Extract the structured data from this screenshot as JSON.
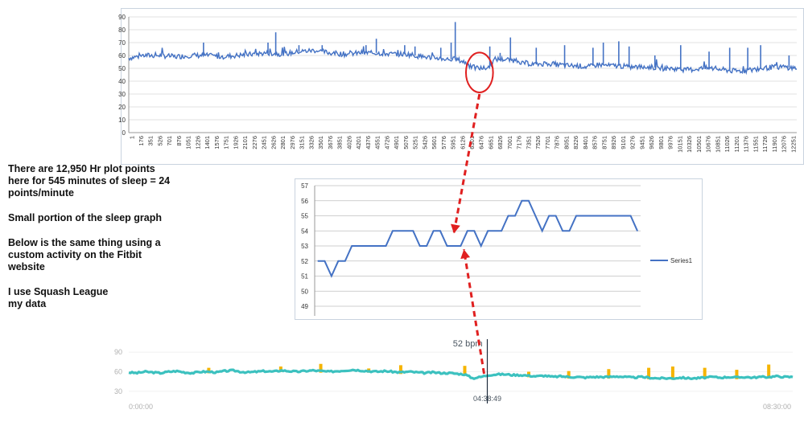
{
  "notes": [
    "There are 12,950 Hr plot points here for 545 minutes of sleep = 24 points/minute",
    "Small portion of the sleep graph",
    "Below is the same thing using a custom activity on the Fitbit website",
    "I use Squash League\nmy data"
  ],
  "colors": {
    "excel_line": "#4472c4",
    "fitbit_teal": "#3cc1bf",
    "fitbit_peak": "#f5b400",
    "annotation_red": "#e02020",
    "grid": "#d9d9d9",
    "cursor": "#1f2d3d"
  },
  "chart_data": [
    {
      "id": "full-night",
      "type": "line",
      "ylim": [
        0,
        90
      ],
      "yticks": [
        0,
        10,
        20,
        30,
        40,
        50,
        60,
        70,
        80,
        90
      ],
      "xticks": [
        "1",
        "176",
        "351",
        "526",
        "701",
        "876",
        "1051",
        "1226",
        "1401",
        "1576",
        "1751",
        "1926",
        "2101",
        "2276",
        "2451",
        "2626",
        "2801",
        "2976",
        "3151",
        "3326",
        "3501",
        "3676",
        "3851",
        "4026",
        "4201",
        "4376",
        "4551",
        "4726",
        "4901",
        "5076",
        "5251",
        "5426",
        "5601",
        "5776",
        "5951",
        "6126",
        "6301",
        "6476",
        "6651",
        "6826",
        "7001",
        "7176",
        "7351",
        "7526",
        "7701",
        "7876",
        "8051",
        "8226",
        "8401",
        "8576",
        "8751",
        "8926",
        "9101",
        "9276",
        "9451",
        "9626",
        "9801",
        "9976",
        "10151",
        "10326",
        "10501",
        "10676",
        "10851",
        "11026",
        "11201",
        "11376",
        "11551",
        "11726",
        "11901",
        "12076",
        "12251"
      ],
      "x_range": [
        1,
        12950
      ],
      "series": [
        {
          "x": [
            1,
            300,
            600,
            900,
            1200,
            1500,
            1800,
            2100,
            2400,
            2700,
            3000,
            3300,
            3600,
            3900,
            4200,
            4500,
            4800,
            5100,
            5400,
            5700,
            6000,
            6200,
            6350,
            6500,
            6650,
            6800,
            6950,
            7100,
            7300,
            7500,
            7700,
            7900,
            8100,
            8300,
            8500,
            8700,
            8900,
            9100,
            9300,
            9500,
            9700,
            9900,
            10100,
            10300,
            10500,
            10700,
            10900,
            11100,
            11300,
            11500,
            11700,
            11900,
            12100,
            12300,
            12500,
            12700,
            12950
          ],
          "values": [
            58,
            60,
            60,
            59,
            60,
            60,
            59,
            60,
            61,
            62,
            61,
            63,
            64,
            62,
            61,
            62,
            62,
            61,
            61,
            59,
            58,
            57,
            57,
            55,
            51,
            50,
            50,
            57,
            57,
            56,
            54,
            53,
            54,
            53,
            52,
            52,
            51,
            53,
            52,
            52,
            51,
            51,
            51,
            50,
            50,
            49,
            49,
            50,
            50,
            49,
            48,
            48,
            49,
            50,
            51,
            51,
            50
          ],
          "spikes": [
            {
              "x": 1450,
              "y": 70
            },
            {
              "x": 2700,
              "y": 70
            },
            {
              "x": 2850,
              "y": 78
            },
            {
              "x": 3300,
              "y": 68
            },
            {
              "x": 3750,
              "y": 68
            },
            {
              "x": 4600,
              "y": 68
            },
            {
              "x": 4800,
              "y": 73
            },
            {
              "x": 5350,
              "y": 68
            },
            {
              "x": 5550,
              "y": 67
            },
            {
              "x": 6050,
              "y": 66
            },
            {
              "x": 6250,
              "y": 70
            },
            {
              "x": 6330,
              "y": 86
            },
            {
              "x": 7000,
              "y": 67
            },
            {
              "x": 7200,
              "y": 62
            },
            {
              "x": 7400,
              "y": 74
            },
            {
              "x": 7900,
              "y": 66
            },
            {
              "x": 8450,
              "y": 68
            },
            {
              "x": 9000,
              "y": 66
            },
            {
              "x": 9200,
              "y": 70
            },
            {
              "x": 9500,
              "y": 71
            },
            {
              "x": 9700,
              "y": 67
            },
            {
              "x": 10200,
              "y": 60
            },
            {
              "x": 10700,
              "y": 68
            },
            {
              "x": 11250,
              "y": 63
            },
            {
              "x": 11650,
              "y": 66
            },
            {
              "x": 12000,
              "y": 66
            },
            {
              "x": 12250,
              "y": 68
            },
            {
              "x": 12800,
              "y": 60
            }
          ]
        }
      ],
      "highlight": {
        "x_start": 6600,
        "x_end": 7000,
        "y_low": 45,
        "y_high": 56
      }
    },
    {
      "id": "sleep-portion",
      "type": "line",
      "ylim": [
        49,
        57
      ],
      "yticks": [
        49,
        50,
        51,
        52,
        53,
        54,
        55,
        56,
        57
      ],
      "series": [
        {
          "name": "Series1",
          "values": [
            52,
            52,
            51,
            52,
            52,
            53,
            53,
            53,
            53,
            53,
            53,
            54,
            54,
            54,
            54,
            53,
            53,
            54,
            54,
            53,
            53,
            53,
            54,
            54,
            53,
            54,
            54,
            54,
            55,
            55,
            56,
            56,
            55,
            54,
            55,
            55,
            54,
            54,
            55,
            55,
            55,
            55,
            55,
            55,
            55,
            55,
            55,
            54
          ]
        }
      ]
    },
    {
      "id": "fitbit",
      "type": "area",
      "yticks": [
        30,
        60,
        90
      ],
      "ylim": [
        20,
        100
      ],
      "x_labels": [
        "0:00:00",
        "08:30:00"
      ],
      "cursor": {
        "value": "52 bpm",
        "time": "04:38:49",
        "position_fraction": 0.54
      },
      "series": [
        {
          "values": [
            59,
            58,
            60,
            59,
            58,
            60,
            61,
            59,
            58,
            60,
            60,
            59,
            61,
            62,
            60,
            59,
            60,
            61,
            60,
            62,
            61,
            60,
            61,
            62,
            61,
            60,
            61,
            62,
            63,
            62,
            61,
            60,
            61,
            60,
            59,
            60,
            59,
            58,
            59,
            58,
            58,
            57,
            56,
            50,
            52,
            55,
            56,
            56,
            55,
            55,
            54,
            53,
            54,
            52,
            53,
            52,
            52,
            51,
            52,
            52,
            52,
            53,
            52,
            51,
            52,
            51,
            50,
            50,
            50,
            51,
            50,
            50,
            51,
            52,
            51,
            52,
            51,
            52,
            51,
            52,
            52,
            53,
            52,
            52
          ],
          "peaks": [
            {
              "index": 10,
              "y": 66
            },
            {
              "index": 19,
              "y": 68
            },
            {
              "index": 24,
              "y": 72
            },
            {
              "index": 30,
              "y": 65
            },
            {
              "index": 34,
              "y": 70
            },
            {
              "index": 42,
              "y": 69
            },
            {
              "index": 50,
              "y": 60
            },
            {
              "index": 55,
              "y": 61
            },
            {
              "index": 60,
              "y": 64
            },
            {
              "index": 65,
              "y": 66
            },
            {
              "index": 68,
              "y": 68
            },
            {
              "index": 72,
              "y": 66
            },
            {
              "index": 76,
              "y": 63
            },
            {
              "index": 80,
              "y": 71
            }
          ]
        }
      ]
    }
  ]
}
